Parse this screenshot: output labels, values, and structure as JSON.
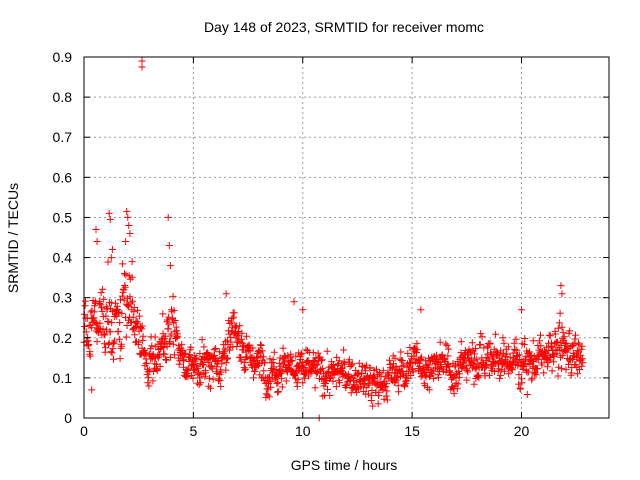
{
  "chart_data": {
    "type": "scatter",
    "title": "Day 148 of 2023, SRMTID for receiver momc",
    "xlabel": "GPS time / hours",
    "ylabel": "SRMTID / TECUs",
    "xlim": [
      0,
      24
    ],
    "ylim": [
      0,
      0.9
    ],
    "xticks": [
      0,
      5,
      10,
      15,
      20
    ],
    "yticks": [
      0,
      0.1,
      0.2,
      0.3,
      0.4,
      0.5,
      0.6,
      0.7,
      0.8,
      0.9
    ],
    "grid": true,
    "marker": "+",
    "series_color": "#ff0000",
    "x_start": 0,
    "x_end": 22.8,
    "samples_per_hour": 60,
    "envelope": {
      "hours": [
        0,
        0.5,
        1.0,
        1.5,
        2.0,
        2.5,
        3.0,
        3.5,
        4.0,
        4.5,
        5.0,
        6.0,
        7.0,
        8.0,
        9.0,
        10.0,
        11.0,
        12.0,
        13.0,
        13.5,
        14.0,
        15.0,
        16.0,
        17.0,
        18.0,
        19.0,
        20.0,
        21.0,
        21.8,
        22.5,
        22.8
      ],
      "mean": [
        0.23,
        0.24,
        0.28,
        0.22,
        0.3,
        0.18,
        0.16,
        0.16,
        0.22,
        0.15,
        0.13,
        0.14,
        0.2,
        0.13,
        0.14,
        0.12,
        0.11,
        0.11,
        0.09,
        0.08,
        0.1,
        0.14,
        0.13,
        0.12,
        0.16,
        0.14,
        0.15,
        0.14,
        0.17,
        0.16,
        0.15
      ],
      "spread": [
        0.05,
        0.06,
        0.08,
        0.08,
        0.1,
        0.06,
        0.05,
        0.05,
        0.07,
        0.04,
        0.04,
        0.04,
        0.05,
        0.04,
        0.05,
        0.04,
        0.04,
        0.04,
        0.04,
        0.03,
        0.04,
        0.04,
        0.04,
        0.04,
        0.05,
        0.04,
        0.05,
        0.04,
        0.07,
        0.04,
        0.04
      ]
    },
    "outliers": [
      {
        "x": 2.65,
        "y": 0.89
      },
      {
        "x": 2.65,
        "y": 0.875
      },
      {
        "x": 1.15,
        "y": 0.51
      },
      {
        "x": 1.2,
        "y": 0.495
      },
      {
        "x": 1.95,
        "y": 0.515
      },
      {
        "x": 2.0,
        "y": 0.5
      },
      {
        "x": 2.05,
        "y": 0.48
      },
      {
        "x": 2.1,
        "y": 0.46
      },
      {
        "x": 1.9,
        "y": 0.44
      },
      {
        "x": 3.85,
        "y": 0.5
      },
      {
        "x": 3.9,
        "y": 0.43
      },
      {
        "x": 3.95,
        "y": 0.38
      },
      {
        "x": 0.55,
        "y": 0.47
      },
      {
        "x": 0.6,
        "y": 0.44
      },
      {
        "x": 1.3,
        "y": 0.42
      },
      {
        "x": 1.25,
        "y": 0.4
      },
      {
        "x": 2.2,
        "y": 0.39
      },
      {
        "x": 9.6,
        "y": 0.29
      },
      {
        "x": 10.0,
        "y": 0.27
      },
      {
        "x": 6.5,
        "y": 0.31
      },
      {
        "x": 15.4,
        "y": 0.27
      },
      {
        "x": 20.0,
        "y": 0.27
      },
      {
        "x": 21.8,
        "y": 0.33
      },
      {
        "x": 21.85,
        "y": 0.31
      },
      {
        "x": 10.75,
        "y": 0.0
      },
      {
        "x": 0.35,
        "y": 0.07
      },
      {
        "x": 13.2,
        "y": 0.03
      }
    ]
  }
}
